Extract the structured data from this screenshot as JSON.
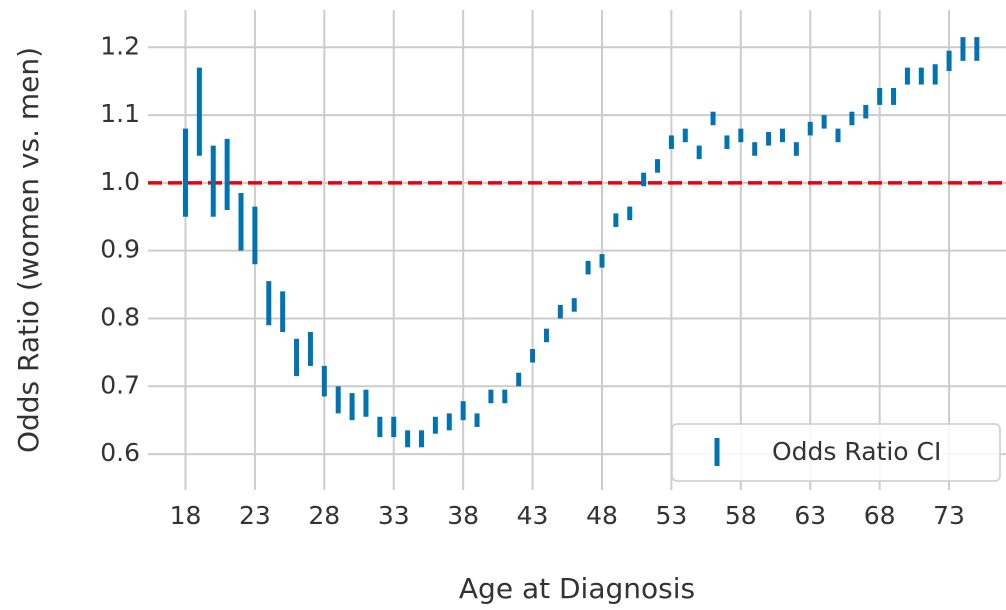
{
  "chart_data": {
    "type": "errorbar",
    "xlabel": "Age at Diagnosis",
    "ylabel": "Odds Ratio (women vs. men)",
    "x": [
      18,
      19,
      20,
      21,
      22,
      23,
      24,
      25,
      26,
      27,
      28,
      29,
      30,
      31,
      32,
      33,
      34,
      35,
      36,
      37,
      38,
      39,
      40,
      41,
      42,
      43,
      44,
      45,
      46,
      47,
      48,
      49,
      50,
      51,
      52,
      53,
      54,
      55,
      56,
      57,
      58,
      59,
      60,
      61,
      62,
      63,
      64,
      65,
      66,
      67,
      68,
      69,
      70,
      71,
      72,
      73,
      74,
      75
    ],
    "series": [
      {
        "name": "Odds Ratio CI",
        "color": "#0173b2",
        "lower": [
          0.95,
          1.04,
          0.95,
          0.96,
          0.9,
          0.88,
          0.79,
          0.78,
          0.715,
          0.73,
          0.685,
          0.66,
          0.65,
          0.655,
          0.625,
          0.625,
          0.61,
          0.61,
          0.63,
          0.635,
          0.65,
          0.64,
          0.675,
          0.675,
          0.7,
          0.735,
          0.765,
          0.8,
          0.81,
          0.865,
          0.875,
          0.935,
          0.945,
          0.995,
          1.015,
          1.05,
          1.06,
          1.035,
          1.085,
          1.05,
          1.06,
          1.04,
          1.055,
          1.06,
          1.04,
          1.07,
          1.08,
          1.06,
          1.085,
          1.095,
          1.115,
          1.115,
          1.145,
          1.145,
          1.145,
          1.165,
          1.18,
          1.18
        ],
        "upper": [
          1.08,
          1.17,
          1.055,
          1.065,
          0.985,
          0.965,
          0.855,
          0.84,
          0.77,
          0.78,
          0.73,
          0.7,
          0.69,
          0.695,
          0.655,
          0.655,
          0.635,
          0.635,
          0.655,
          0.66,
          0.678,
          0.66,
          0.695,
          0.695,
          0.72,
          0.755,
          0.785,
          0.82,
          0.83,
          0.885,
          0.895,
          0.955,
          0.965,
          1.015,
          1.035,
          1.07,
          1.08,
          1.055,
          1.105,
          1.07,
          1.08,
          1.06,
          1.075,
          1.08,
          1.06,
          1.09,
          1.1,
          1.08,
          1.105,
          1.115,
          1.14,
          1.14,
          1.17,
          1.17,
          1.175,
          1.195,
          1.215,
          1.215
        ]
      }
    ],
    "reference_line": {
      "value": 1.0,
      "color": "#e8000b"
    },
    "xlim": [
      15.3,
      77.1
    ],
    "ylim": [
      0.547,
      1.255
    ],
    "xticks": [
      18,
      23,
      28,
      33,
      38,
      43,
      48,
      53,
      58,
      63,
      68,
      73
    ],
    "yticks": [
      0.6,
      0.7,
      0.8,
      0.9,
      {
        "value": 1,
        "label": "1.0"
      },
      1.1,
      1.2
    ],
    "grid": true,
    "legend": "lower right"
  }
}
